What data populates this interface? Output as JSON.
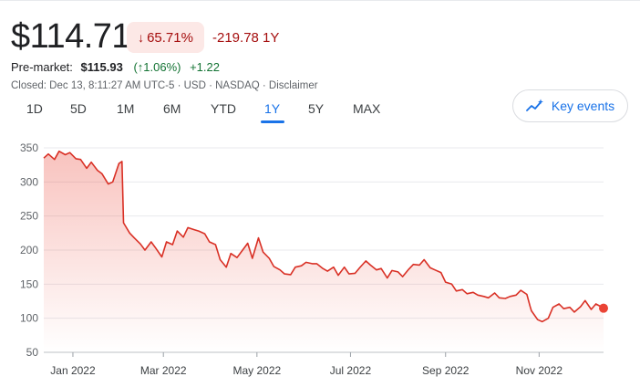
{
  "quote": {
    "price": "$114.71",
    "change_pct": "65.71%",
    "change_abs": "-219.78 1Y",
    "premarket_label": "Pre-market:",
    "premarket_price": "$115.93",
    "premarket_pct": "(↑1.06%)",
    "premarket_abs": "+1.22",
    "closed_line": "Closed: Dec 13, 8:11:27 AM UTC-5 · USD · NASDAQ · Disclaimer"
  },
  "colors": {
    "negative": "#a50e0e",
    "positive": "#137333",
    "accent": "#1a73e8",
    "line": "#d93025"
  },
  "tabs": [
    {
      "label": "1D"
    },
    {
      "label": "5D"
    },
    {
      "label": "1M"
    },
    {
      "label": "6M"
    },
    {
      "label": "YTD"
    },
    {
      "label": "1Y",
      "active": true
    },
    {
      "label": "5Y"
    },
    {
      "label": "MAX"
    }
  ],
  "key_events": {
    "label": "Key events",
    "icon": "trend-sparkle-icon"
  },
  "chart_data": {
    "type": "area",
    "title": "",
    "xlabel": "",
    "ylabel": "",
    "ylim": [
      50,
      350
    ],
    "yticks": [
      50,
      100,
      150,
      200,
      250,
      300,
      350
    ],
    "xticks": [
      "Jan 2022",
      "Mar 2022",
      "May 2022",
      "Jul 2022",
      "Sep 2022",
      "Nov 2022"
    ],
    "xtick_dates": [
      "2022-01-01",
      "2022-03-01",
      "2022-05-01",
      "2022-07-01",
      "2022-09-01",
      "2022-11-01"
    ],
    "x_range": [
      "2021-12-13",
      "2022-12-13"
    ],
    "grid": true,
    "series": [
      {
        "x": [
          "2021-12-13",
          "2021-12-16",
          "2021-12-20",
          "2021-12-23",
          "2021-12-27",
          "2021-12-30",
          "2022-01-03",
          "2022-01-06",
          "2022-01-10",
          "2022-01-13",
          "2022-01-17",
          "2022-01-20",
          "2022-01-24",
          "2022-01-27",
          "2022-01-31",
          "2022-02-02",
          "2022-02-03",
          "2022-02-07",
          "2022-02-10",
          "2022-02-14",
          "2022-02-17",
          "2022-02-21",
          "2022-02-24",
          "2022-02-28",
          "2022-03-03",
          "2022-03-07",
          "2022-03-10",
          "2022-03-14",
          "2022-03-17",
          "2022-03-21",
          "2022-03-24",
          "2022-03-28",
          "2022-03-31",
          "2022-04-04",
          "2022-04-07",
          "2022-04-11",
          "2022-04-14",
          "2022-04-18",
          "2022-04-21",
          "2022-04-25",
          "2022-04-28",
          "2022-05-02",
          "2022-05-05",
          "2022-05-09",
          "2022-05-12",
          "2022-05-16",
          "2022-05-19",
          "2022-05-23",
          "2022-05-26",
          "2022-05-30",
          "2022-06-02",
          "2022-06-06",
          "2022-06-09",
          "2022-06-13",
          "2022-06-16",
          "2022-06-20",
          "2022-06-23",
          "2022-06-27",
          "2022-06-30",
          "2022-07-04",
          "2022-07-07",
          "2022-07-11",
          "2022-07-14",
          "2022-07-18",
          "2022-07-21",
          "2022-07-25",
          "2022-07-28",
          "2022-08-01",
          "2022-08-04",
          "2022-08-08",
          "2022-08-11",
          "2022-08-15",
          "2022-08-18",
          "2022-08-22",
          "2022-08-25",
          "2022-08-29",
          "2022-09-01",
          "2022-09-05",
          "2022-09-08",
          "2022-09-12",
          "2022-09-15",
          "2022-09-19",
          "2022-09-22",
          "2022-09-26",
          "2022-09-29",
          "2022-10-03",
          "2022-10-06",
          "2022-10-10",
          "2022-10-13",
          "2022-10-17",
          "2022-10-20",
          "2022-10-24",
          "2022-10-26",
          "2022-10-27",
          "2022-10-31",
          "2022-11-03",
          "2022-11-07",
          "2022-11-10",
          "2022-11-14",
          "2022-11-17",
          "2022-11-21",
          "2022-11-24",
          "2022-11-28",
          "2022-12-01",
          "2022-12-05",
          "2022-12-08",
          "2022-12-13"
        ],
        "y": [
          335,
          341,
          333,
          345,
          340,
          343,
          334,
          333,
          320,
          329,
          317,
          312,
          297,
          300,
          327,
          330,
          240,
          225,
          218,
          209,
          200,
          212,
          203,
          190,
          212,
          208,
          228,
          219,
          233,
          230,
          228,
          224,
          212,
          208,
          186,
          175,
          195,
          189,
          198,
          210,
          188,
          218,
          197,
          188,
          176,
          171,
          165,
          164,
          175,
          177,
          182,
          180,
          180,
          173,
          169,
          175,
          163,
          175,
          165,
          166,
          174,
          184,
          178,
          171,
          173,
          159,
          170,
          168,
          161,
          172,
          179,
          178,
          186,
          174,
          171,
          167,
          153,
          150,
          140,
          142,
          136,
          138,
          134,
          132,
          130,
          137,
          130,
          129,
          132,
          134,
          141,
          135,
          118,
          111,
          98,
          95,
          100,
          116,
          121,
          114,
          116,
          109,
          117,
          126,
          113,
          121,
          115
        ]
      }
    ],
    "last_value": 114.71
  }
}
